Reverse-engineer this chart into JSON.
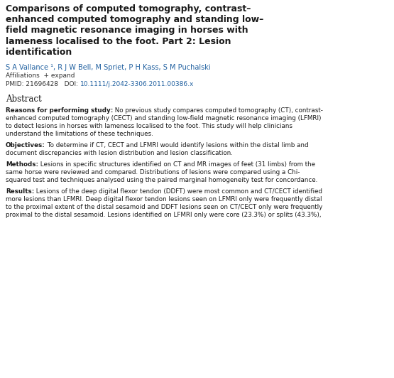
{
  "title_lines": [
    "Comparisons of computed tomography, contrast–",
    "enhanced computed tomography and standing low–",
    "field magnetic resonance imaging in horses with",
    "lameness localised to the foot. Part 2: Lesion",
    "identification"
  ],
  "authors": "S A Vallance ¹, R J W Bell, M Spriet, P H Kass, S M Puchalski",
  "affiliations_line": "Affiliations  + expand",
  "pmid_plain": "PMID: 21696428   DOI: ",
  "doi_link": "10.1111/j.2042-3306.2011.00386.x",
  "abstract_heading": "Abstract",
  "paragraphs": [
    {
      "bold": "Reasons for performing study:",
      "lines": [
        " No previous study compares computed tomography (CT), contrast-",
        "enhanced computed tomography (CECT) and standing low-field magnetic resonance imaging (LFMRI)",
        "to detect lesions in horses with lameness localised to the foot. This study will help clinicians",
        "understand the limitations of these techniques."
      ]
    },
    {
      "bold": "Objectives:",
      "lines": [
        " To determine if CT, CECT and LFMRI would identify lesions within the distal limb and",
        "document discrepancies with lesion distribution and lesion classification."
      ]
    },
    {
      "bold": "Methods:",
      "lines": [
        " Lesions in specific structures identified on CT and MR images of feet (31 limbs) from the",
        "same horse were reviewed and compared. Distributions of lesions were compared using a Chi-",
        "squared test and techniques analysed using the paired marginal homogeneity test for concordance."
      ]
    },
    {
      "bold": "Results:",
      "lines": [
        " Lesions of the deep digital flexor tendon (DDFT) were most common and CT/CECT identified",
        "more lesions than LFMRI. Deep digital flexor tendon lesions seen on LFMRI only were frequently distal",
        "to the proximal extent of the distal sesamoid and DDFT lesions seen on CT/CECT only were frequently",
        "proximal to the distal sesamoid. Lesions identified on LFMRI only were core (23.3%) or splits (43.3%),"
      ]
    }
  ],
  "title_color": "#1a1a1a",
  "authors_color": "#2060a0",
  "affiliations_color": "#333333",
  "pmid_color": "#333333",
  "doi_color": "#2060a0",
  "abstract_heading_color": "#1a1a1a",
  "body_color": "#1a1a1a",
  "background_color": "#ffffff",
  "title_fontsize": 9.0,
  "authors_fontsize": 7.0,
  "affiliations_fontsize": 6.5,
  "abstract_heading_fontsize": 8.5,
  "body_fontsize": 6.3,
  "fig_width": 5.55,
  "fig_height": 5.32,
  "dpi": 100
}
